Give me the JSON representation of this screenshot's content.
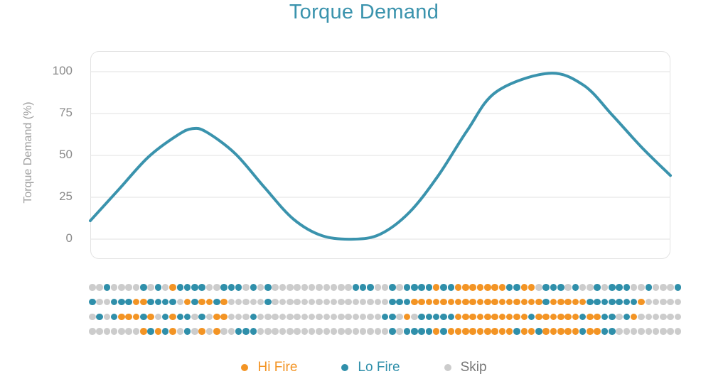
{
  "title": "Torque Demand",
  "colors": {
    "title": "#3a93ad",
    "line": "#3a93ad",
    "hi_fire": "#f39424",
    "lo_fire": "#2f8faa",
    "skip": "#cccccc",
    "grid": "#e6e6e6",
    "tick": "#8a8a8a"
  },
  "legend": [
    {
      "key": "H",
      "label": "Hi Fire",
      "color": "#f39424",
      "text_color": "#f39424"
    },
    {
      "key": "L",
      "label": "Lo Fire",
      "color": "#2f8faa",
      "text_color": "#2f8faa"
    },
    {
      "key": "S",
      "label": "Skip",
      "color": "#cccccc",
      "text_color": "#777777"
    }
  ],
  "chart_data": {
    "type": "line",
    "title": "Torque Demand",
    "xlabel": "",
    "ylabel": "Torque Demand (%)",
    "ylim": [
      0,
      100
    ],
    "yticks": [
      100,
      75,
      50,
      25,
      0
    ],
    "grid": true,
    "legend_position": "bottom",
    "x": [
      0,
      0.05,
      0.1,
      0.15,
      0.176,
      0.2,
      0.25,
      0.3,
      0.35,
      0.4,
      0.454,
      0.5,
      0.55,
      0.6,
      0.65,
      0.7,
      0.79,
      0.85,
      0.9,
      0.95,
      1.0
    ],
    "series": [
      {
        "name": "Torque Demand",
        "values": [
          11,
          30,
          49,
          62,
          66,
          64,
          51,
          31,
          12,
          2,
          0,
          3,
          16,
          38,
          65,
          88,
          99,
          92,
          74,
          55,
          38
        ]
      }
    ],
    "firing_pattern": {
      "description": "Per-cylinder firing decisions over time; H = Hi Fire, L = Lo Fire, S = Skip",
      "rows": [
        "SSLSSSSLSLSHLLLLSSLLLSLSLSSSSSSSSSSSLLLSSLSLLLLHLLHHHHHHHLLHHSLLLSLSSLSLLLSSLSSSL",
        "LSSLLLHHLLLLSHLHHLHSSSSSLSSSSSSSSSSSSSSSSLLLHHHHHHHHHHHHHHHHHHLHHHHHLLLLLLLHSSSSS",
        "SLSLHHHLHSLHLLSLSHHSSSLSSSSSSSSSSSSSSSSSLLSHSLLLLLHHHHHHHHHHLHHHHHHLHHLLSLHSSSSSS",
        "SSSSSSSHLHLHSLSHSHSSLLLSSSSSSSSSSSSSSSSSSLSLLLLHLHHHHHHHHHLHHLHHHHHLHHLLSSSSSSSSS"
      ]
    }
  }
}
